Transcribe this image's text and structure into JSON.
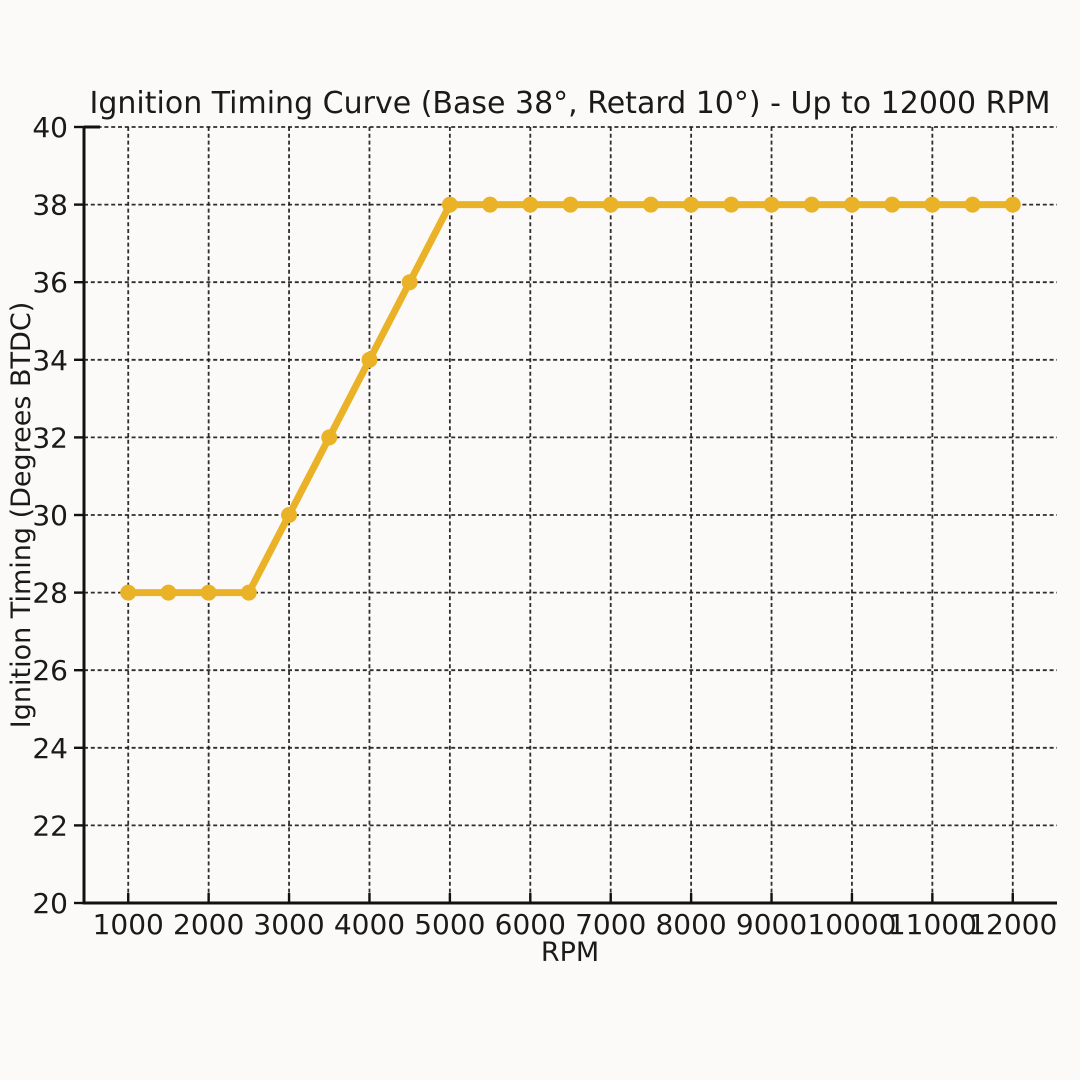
{
  "page": {
    "background": "#FBFAF8"
  },
  "chart_data": {
    "type": "line",
    "title": "Ignition Timing Curve (Base 38°, Retard 10°) - Up to 12000 RPM",
    "xlabel": "RPM",
    "ylabel": "Ignition Timing (Degrees BTDC)",
    "xlim": [
      450,
      12550
    ],
    "ylim": [
      20,
      40
    ],
    "x_ticks": [
      1000,
      2000,
      3000,
      4000,
      5000,
      6000,
      7000,
      8000,
      9000,
      10000,
      11000,
      12000
    ],
    "y_ticks": [
      20,
      22,
      24,
      26,
      28,
      30,
      32,
      34,
      36,
      38,
      40
    ],
    "grid": true,
    "grid_style": "dashed",
    "legend": "none",
    "text_color": "#1A1A1A",
    "grid_color": "#1C1C1C",
    "series": [
      {
        "name": "Ignition Timing",
        "color": "#EAB227",
        "marker": "circle",
        "line_width": 7,
        "marker_radius": 8,
        "x": [
          1000,
          1500,
          2000,
          2500,
          3000,
          3500,
          4000,
          4500,
          5000,
          5500,
          6000,
          6500,
          7000,
          7500,
          8000,
          8500,
          9000,
          9500,
          10000,
          10500,
          11000,
          11500,
          12000
        ],
        "y": [
          28,
          28,
          28,
          28,
          30,
          32,
          34,
          36,
          38,
          38,
          38,
          38,
          38,
          38,
          38,
          38,
          38,
          38,
          38,
          38,
          38,
          38,
          38
        ]
      }
    ]
  }
}
